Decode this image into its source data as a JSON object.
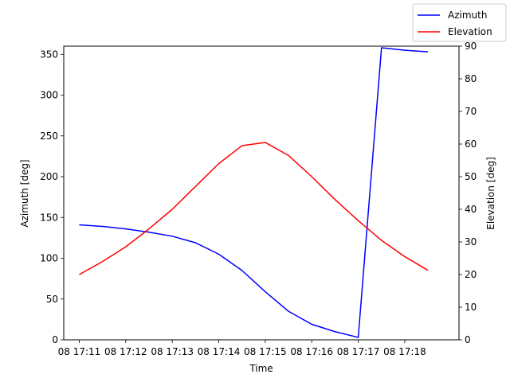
{
  "chart_data": {
    "type": "line",
    "xlabel": "Time",
    "ylabel_left": "Azimuth [deg]",
    "ylabel_right": "Elevation [deg]",
    "x_ticks": [
      "08 17:11",
      "08 17:12",
      "08 17:13",
      "08 17:14",
      "08 17:15",
      "08 17:16",
      "08 17:17",
      "08 17:18"
    ],
    "x_tick_labels_overlapping": [
      "08 17:1108 17:1208 17:1308 17:1408 17:1508 17:1608 17:1708 17:18"
    ],
    "x": [
      "17:11:00",
      "17:11:30",
      "17:12:00",
      "17:12:30",
      "17:13:00",
      "17:13:30",
      "17:14:00",
      "17:14:30",
      "17:15:00",
      "17:15:30",
      "17:16:00",
      "17:16:30",
      "17:17:00",
      "17:17:30",
      "17:18:00",
      "17:18:30"
    ],
    "xlim": [
      "17:10:40",
      "17:19:10"
    ],
    "ylim_left": [
      0,
      360
    ],
    "ylim_right": [
      0,
      90
    ],
    "yticks_left": [
      0,
      50,
      100,
      150,
      200,
      250,
      300,
      350
    ],
    "yticks_right": [
      0,
      10,
      20,
      30,
      40,
      50,
      60,
      70,
      80,
      90
    ],
    "series": [
      {
        "name": "Azimuth",
        "axis": "left",
        "color": "#0000ff",
        "values": [
          141,
          139,
          136,
          132,
          127,
          119,
          105,
          85,
          59,
          35,
          19,
          10,
          3,
          358,
          355,
          353
        ]
      },
      {
        "name": "Elevation",
        "axis": "right",
        "color": "#ff0000",
        "values": [
          20,
          24,
          28.5,
          34,
          40,
          47,
          54,
          59.5,
          60.5,
          56.5,
          50,
          43,
          36.5,
          30.5,
          25.5,
          21.3
        ]
      }
    ],
    "legend_position": "top-right",
    "grid": false
  }
}
